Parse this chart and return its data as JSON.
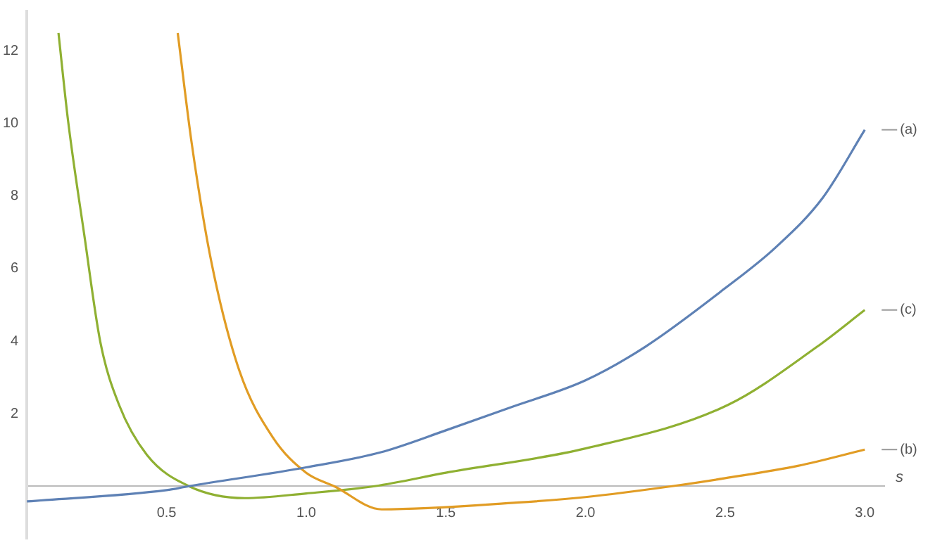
{
  "chart_data": {
    "type": "line",
    "xlabel": "s",
    "xlim": [
      0,
      3.07
    ],
    "ylim": [
      -1.45,
      13.1
    ],
    "xticks": [
      0.5,
      {
        "value": 1,
        "label": "1.0"
      },
      1.5,
      {
        "value": 2,
        "label": "2.0"
      },
      2.5,
      {
        "value": 3,
        "label": "3.0"
      }
    ],
    "yticks": [
      2,
      4,
      6,
      8,
      10,
      12
    ],
    "grid": false,
    "legend": false,
    "marker": "none",
    "line_style": "solid",
    "series": [
      {
        "name": "(a)",
        "color": "#5e81b5",
        "x": [
          0,
          0.5,
          0.58,
          1.0,
          1.265,
          1.5,
          1.73,
          2.0,
          2.215,
          2.5,
          2.68,
          2.85,
          3.0
        ],
        "values": [
          -0.42,
          -0.11,
          0,
          0.52,
          0.93,
          1.54,
          2.17,
          2.92,
          3.85,
          5.46,
          6.58,
          7.96,
          9.83
        ]
      },
      {
        "name": "(b)",
        "color": "#e19c24",
        "x": [
          0.54,
          0.59,
          0.66,
          0.76,
          0.88,
          1.0,
          1.1,
          1.27,
          1.76,
          2.0,
          2.31,
          2.5,
          2.76,
          3.0
        ],
        "values": [
          12.5,
          9.46,
          6.2,
          3.2,
          1.35,
          0.37,
          0,
          -0.64,
          -0.45,
          -0.3,
          0,
          0.22,
          0.56,
          1.01
        ]
      },
      {
        "name": "(c)",
        "color": "#8fb032",
        "x": [
          0.113,
          0.147,
          0.205,
          0.263,
          0.33,
          0.43,
          0.58,
          0.78,
          1.0,
          1.245,
          1.5,
          2.0,
          2.51,
          2.83,
          3.0
        ],
        "values": [
          12.5,
          10.1,
          6.95,
          3.97,
          2.24,
          0.86,
          0,
          -0.33,
          -0.2,
          0,
          0.37,
          1.04,
          2.24,
          3.85,
          4.86
        ]
      }
    ]
  }
}
